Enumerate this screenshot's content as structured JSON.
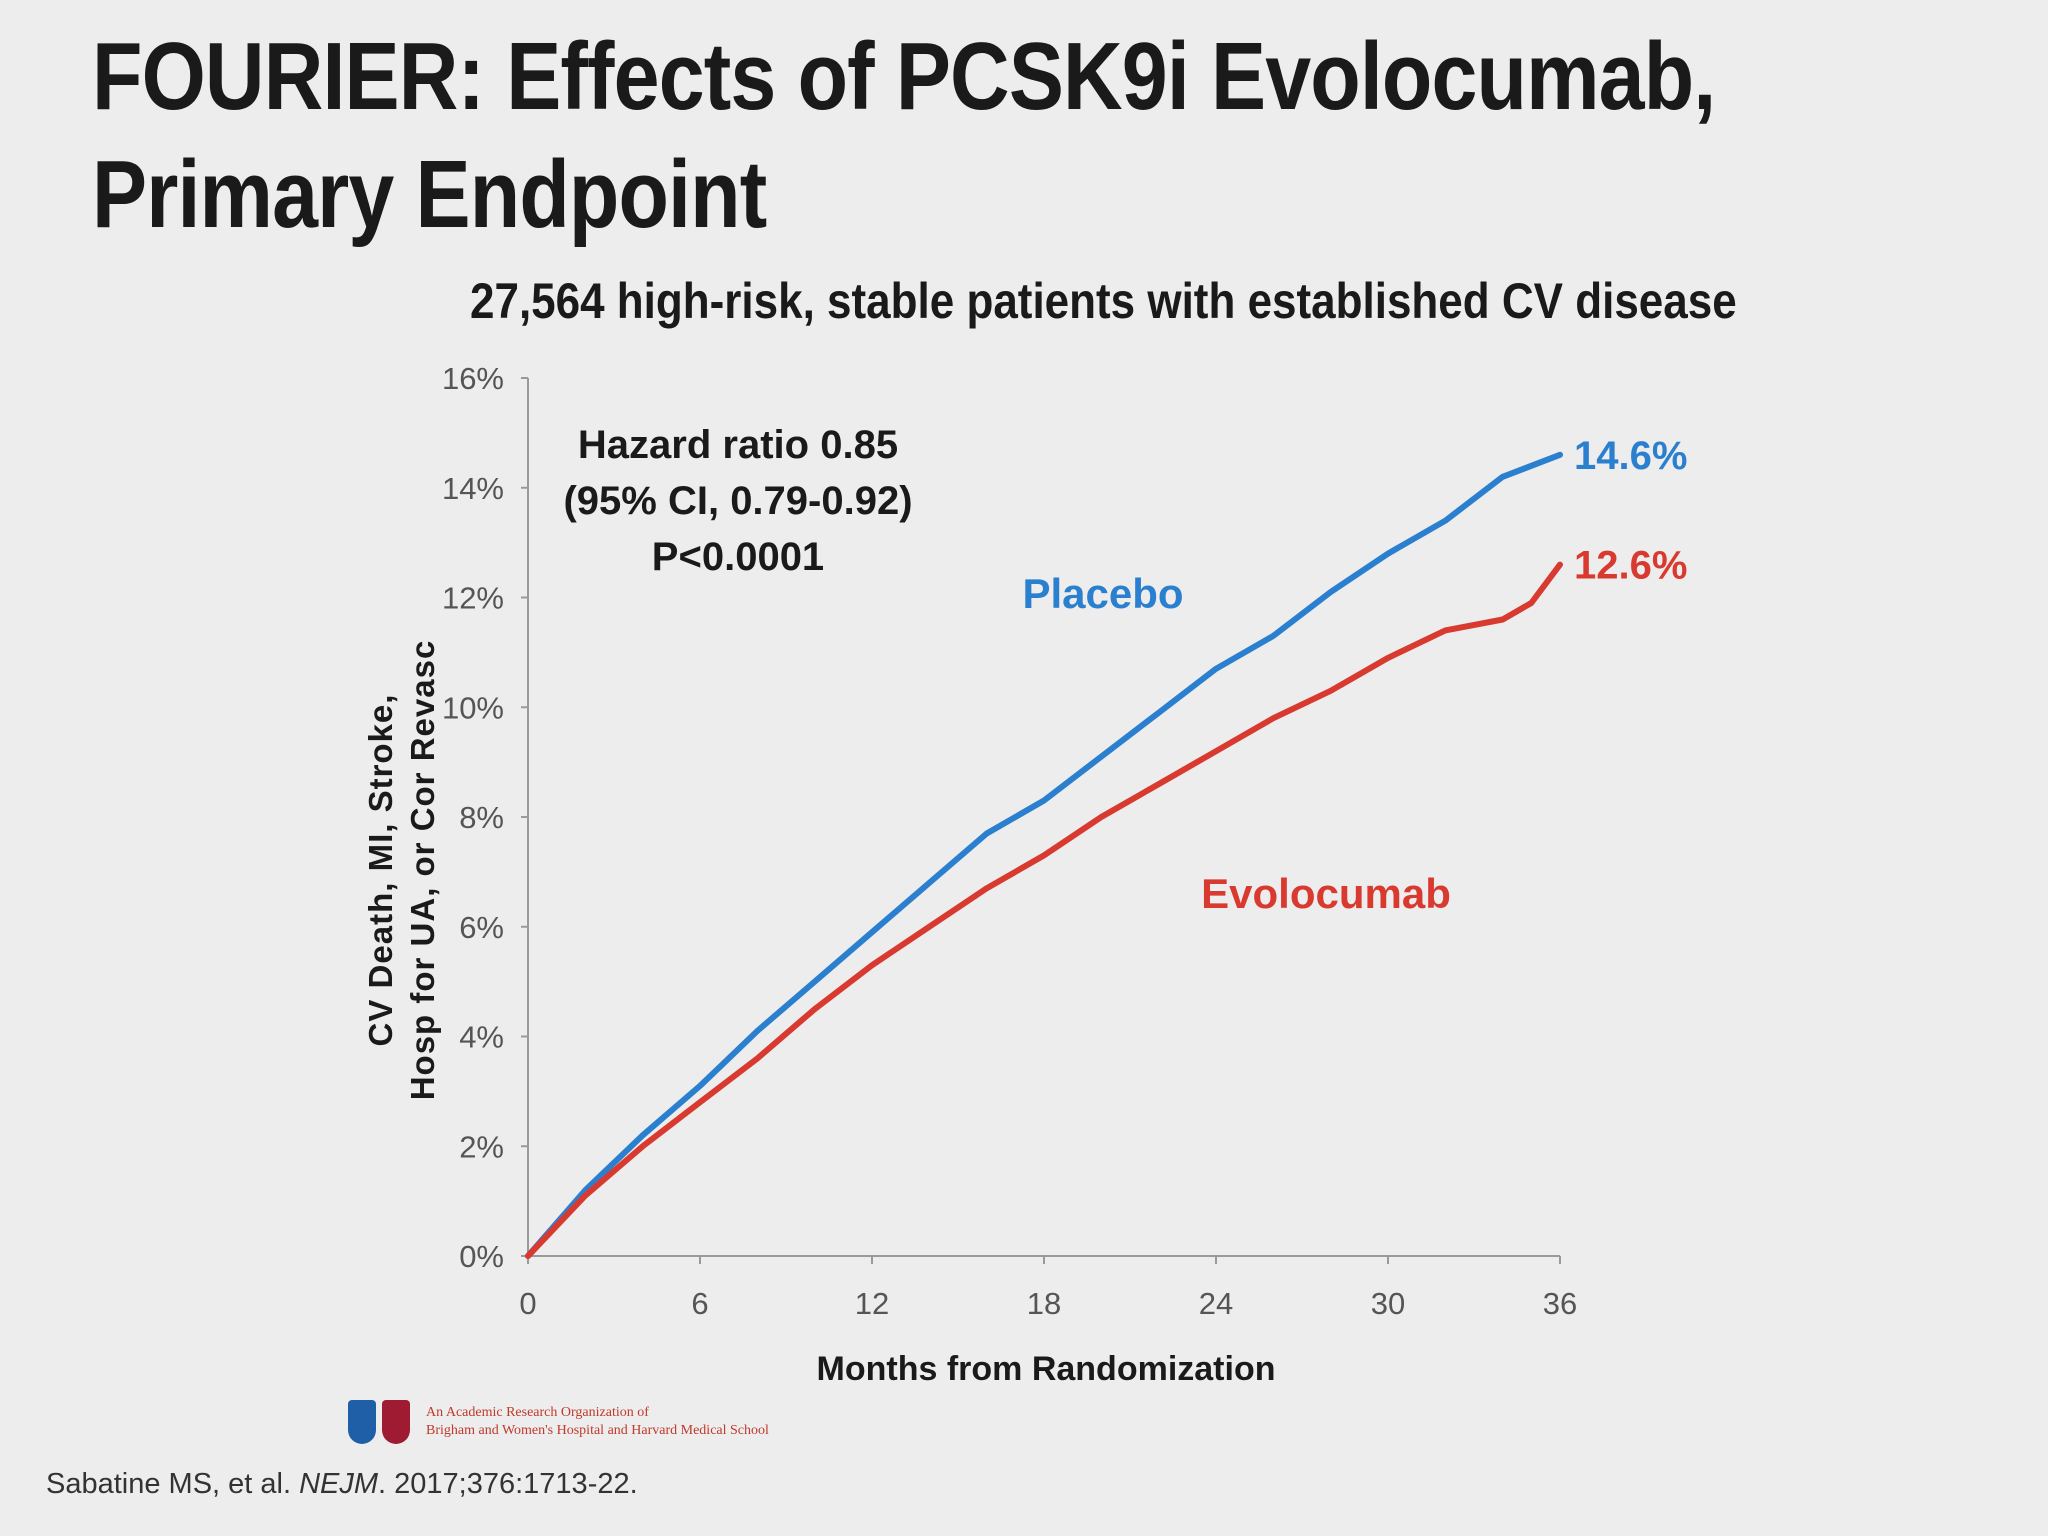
{
  "slide": {
    "title_line1": "FOURIER: Effects of PCSK9i Evolocumab,",
    "title_line2": "Primary Endpoint",
    "subtitle": "27,564 high-risk, stable patients with established CV disease",
    "org_line1": "An Academic Research Organization of",
    "org_line2": "Brigham and Women's Hospital and Harvard Medical School",
    "citation_prefix": "Sabatine MS, et al. ",
    "citation_journal": "NEJM",
    "citation_suffix": ". 2017;376:1713-22."
  },
  "chart_data": {
    "type": "line",
    "xlabel": "Months from Randomization",
    "ylabel_line1": "CV Death, MI, Stroke,",
    "ylabel_line2": "Hosp for UA, or Cor Revasc",
    "xlim": [
      0,
      36
    ],
    "ylim": [
      0,
      16
    ],
    "xticks": [
      0,
      6,
      12,
      18,
      24,
      30,
      36
    ],
    "yticks": [
      "0%",
      "2%",
      "4%",
      "6%",
      "8%",
      "10%",
      "12%",
      "14%",
      "16%"
    ],
    "annotation": [
      "Hazard ratio 0.85",
      "(95% CI, 0.79-0.92)",
      "P<0.0001"
    ],
    "series": [
      {
        "name": "Placebo",
        "color": "#2b7fcf",
        "end_label": "14.6%",
        "x": [
          0,
          2,
          4,
          6,
          8,
          10,
          12,
          14,
          16,
          18,
          20,
          22,
          24,
          26,
          28,
          30,
          32,
          34,
          36
        ],
        "y": [
          0,
          1.2,
          2.2,
          3.1,
          4.1,
          5.0,
          5.9,
          6.8,
          7.7,
          8.3,
          9.1,
          9.9,
          10.7,
          11.3,
          12.1,
          12.8,
          13.4,
          14.2,
          14.6
        ]
      },
      {
        "name": "Evolocumab",
        "color": "#d93a30",
        "end_label": "12.6%",
        "x": [
          0,
          2,
          4,
          6,
          8,
          10,
          12,
          14,
          16,
          18,
          20,
          22,
          24,
          26,
          28,
          30,
          32,
          34,
          35,
          36
        ],
        "y": [
          0,
          1.1,
          2.0,
          2.8,
          3.6,
          4.5,
          5.3,
          6.0,
          6.7,
          7.3,
          8.0,
          8.6,
          9.2,
          9.8,
          10.3,
          10.9,
          11.4,
          11.6,
          11.9,
          12.6
        ]
      }
    ]
  }
}
